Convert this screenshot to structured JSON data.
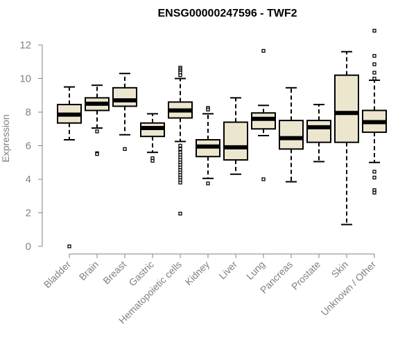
{
  "chart_data": {
    "type": "boxplot",
    "title": "ENSG00000247596 - TWF2",
    "xlabel": "",
    "ylabel": "Expression",
    "ylim": [
      0,
      12
    ],
    "yticks": [
      0,
      2,
      4,
      6,
      8,
      10,
      12
    ],
    "grid": false,
    "colors": {
      "box_fill": "#ede6cf",
      "outline": "#000000",
      "axis": "#808080",
      "text": "#808080",
      "title": "#000000"
    },
    "categories": [
      "Bladder",
      "Brain",
      "Breast",
      "Gastric",
      "Hematopoietic cells",
      "Kidney",
      "Liver",
      "Lung",
      "Pancreas",
      "Prostate",
      "Skin",
      "Unknown / Other"
    ],
    "boxes": [
      {
        "category": "Bladder",
        "whisker_low": 6.35,
        "q1": 7.35,
        "median": 7.85,
        "q3": 8.45,
        "whisker_high": 9.5,
        "outliers": [
          0.0
        ]
      },
      {
        "category": "Brain",
        "whisker_low": 7.05,
        "q1": 8.1,
        "median": 8.5,
        "q3": 8.85,
        "whisker_high": 9.6,
        "outliers": [
          6.85,
          5.55,
          5.5
        ]
      },
      {
        "category": "Breast",
        "whisker_low": 6.65,
        "q1": 8.35,
        "median": 8.7,
        "q3": 9.45,
        "whisker_high": 10.3,
        "outliers": [
          5.8
        ]
      },
      {
        "category": "Gastric",
        "whisker_low": 5.6,
        "q1": 6.55,
        "median": 7.05,
        "q3": 7.35,
        "whisker_high": 7.9,
        "outliers": [
          5.25,
          5.1
        ]
      },
      {
        "category": "Hematopoietic cells",
        "whisker_low": 6.25,
        "q1": 7.65,
        "median": 8.1,
        "q3": 8.6,
        "whisker_high": 10.0,
        "outliers": [
          10.65,
          10.55,
          10.45,
          10.35,
          10.2,
          6.0,
          5.8,
          5.6,
          5.45,
          5.3,
          5.15,
          5.0,
          4.85,
          4.7,
          4.55,
          4.4,
          4.25,
          4.1,
          3.95,
          3.8,
          1.95
        ]
      },
      {
        "category": "Kidney",
        "whisker_low": 4.05,
        "q1": 5.35,
        "median": 5.95,
        "q3": 6.35,
        "whisker_high": 7.9,
        "outliers": [
          8.25,
          8.15,
          3.75
        ]
      },
      {
        "category": "Liver",
        "whisker_low": 4.3,
        "q1": 5.15,
        "median": 5.9,
        "q3": 7.4,
        "whisker_high": 8.85,
        "outliers": []
      },
      {
        "category": "Lung",
        "whisker_low": 6.6,
        "q1": 7.0,
        "median": 7.6,
        "q3": 7.95,
        "whisker_high": 8.4,
        "outliers": [
          11.65,
          4.0
        ]
      },
      {
        "category": "Pancreas",
        "whisker_low": 3.85,
        "q1": 5.8,
        "median": 6.45,
        "q3": 7.5,
        "whisker_high": 9.45,
        "outliers": []
      },
      {
        "category": "Prostate",
        "whisker_low": 5.05,
        "q1": 6.2,
        "median": 7.1,
        "q3": 7.5,
        "whisker_high": 8.45,
        "outliers": []
      },
      {
        "category": "Skin",
        "whisker_low": 1.3,
        "q1": 6.2,
        "median": 7.95,
        "q3": 10.2,
        "whisker_high": 11.6,
        "outliers": []
      },
      {
        "category": "Unknown / Other",
        "whisker_low": 5.0,
        "q1": 6.8,
        "median": 7.4,
        "q3": 8.1,
        "whisker_high": 9.9,
        "outliers": [
          12.85,
          11.35,
          10.85,
          10.35,
          10.0,
          4.45,
          4.1,
          3.35,
          3.2
        ]
      }
    ]
  }
}
